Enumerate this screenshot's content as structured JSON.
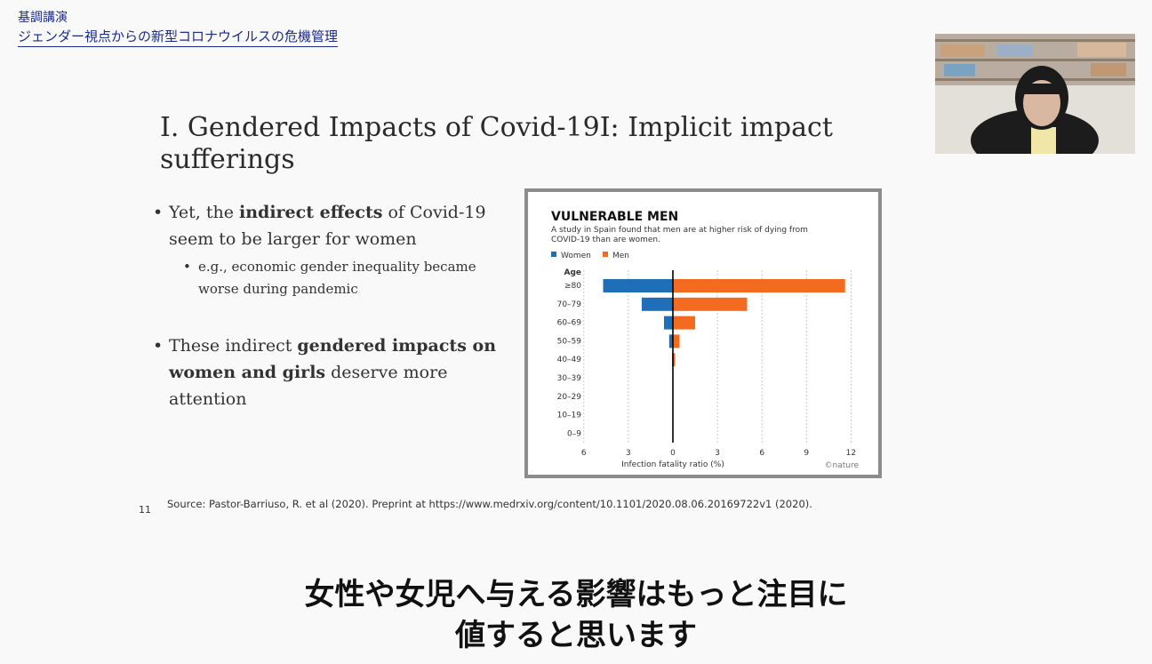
{
  "header": {
    "label": "基調講演",
    "session_title": "ジェンダー視点からの新型コロナウイルスの危機管理"
  },
  "slide": {
    "title": "I. Gendered Impacts of Covid-19I: Implicit impact sufferings",
    "bullet1": {
      "pre": "Yet, the ",
      "bold": "indirect effects",
      "post": " of Covid-19 seem to be larger for women"
    },
    "sub_bullet1": "e.g., economic gender inequality became worse during pandemic",
    "bullet2": {
      "pre": "These indirect ",
      "bold": "gendered impacts on women and girls",
      "post": " deserve more attention"
    },
    "source": "Source: Pastor-Barriuso, R. et al (2020). Preprint at https://www.medrxiv.org/content/10.1101/2020.08.06.20169722v1 (2020).",
    "page_number": "11"
  },
  "subtitle": {
    "line1": "女性や女児へ与える影響はもっと注目に",
    "line2": "値すると思います"
  },
  "chart_data": {
    "type": "bar",
    "title": "VULNERABLE MEN",
    "subtitle": "A study in Spain found that men are at higher risk of dying from COVID-19 than are women.",
    "category_label": "Age",
    "categories": [
      "≥80",
      "70–79",
      "60–69",
      "50–59",
      "40–49",
      "30–39",
      "20–29",
      "10–19",
      "0–9"
    ],
    "series": [
      {
        "name": "Women",
        "color": "#1f6fb8",
        "values": [
          4.7,
          2.1,
          0.6,
          0.25,
          0.05,
          0.01,
          0.0,
          0.0,
          0.0
        ]
      },
      {
        "name": "Men",
        "color": "#f26b21",
        "values": [
          11.6,
          5.0,
          1.5,
          0.45,
          0.15,
          0.03,
          0.01,
          0.0,
          0.0
        ]
      }
    ],
    "xlabel": "Infection fatality ratio (%)",
    "xticks": [
      "6",
      "3",
      "0",
      "3",
      "6",
      "9",
      "12"
    ],
    "credit": "©nature",
    "grid": true
  }
}
